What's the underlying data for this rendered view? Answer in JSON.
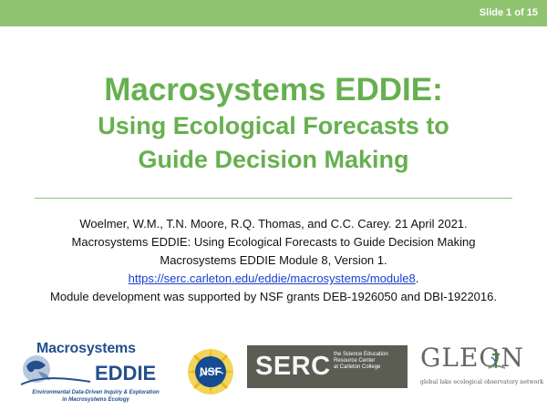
{
  "slide": {
    "counter": "Slide 1 of 15",
    "title": "Macrosystems EDDIE:",
    "subtitle_line_1": "Using Ecological Forecasts to",
    "subtitle_line_2": "Guide Decision Making",
    "citation_line_1": "Woelmer, W.M., T.N. Moore, R.Q. Thomas, and C.C. Carey. 21 April 2021.",
    "citation_line_2": "Macrosystems EDDIE: Using Ecological Forecasts to Guide Decision Making",
    "citation_line_3": "Macrosystems EDDIE Module 8, Version 1.",
    "citation_url": "https://serc.carleton.edu/eddie/macrosystems/module8",
    "citation_url_punctuation": ".",
    "funding_note": "Module development was supported by NSF grants DEB-1926050 and DBI-1922016."
  },
  "logos": {
    "eddie": {
      "line_1": "Macrosystems",
      "line_2": "EDDIE",
      "caption_line_1": "Environmental Data-Driven Inquiry & Exploration",
      "caption_line_2": "in Macrosystems Ecology"
    },
    "nsf": {
      "label": "NSF"
    },
    "serc": {
      "mark": "SERC",
      "line_1": "the Science Education",
      "line_2": "Resource Center",
      "line_3": "at Carleton College"
    },
    "gleon": {
      "word": "GLEON",
      "caption": "global lake ecological observatory network"
    }
  },
  "colors": {
    "accent_green": "#8fc36f",
    "title_green": "#66b04f",
    "link_blue": "#1a3fd1",
    "eddie_blue": "#244f8c",
    "serc_gray": "#5b5d53"
  },
  "icons": {
    "nsf": "nsf-seal-icon",
    "gleon": "lake-observatory-icon"
  }
}
